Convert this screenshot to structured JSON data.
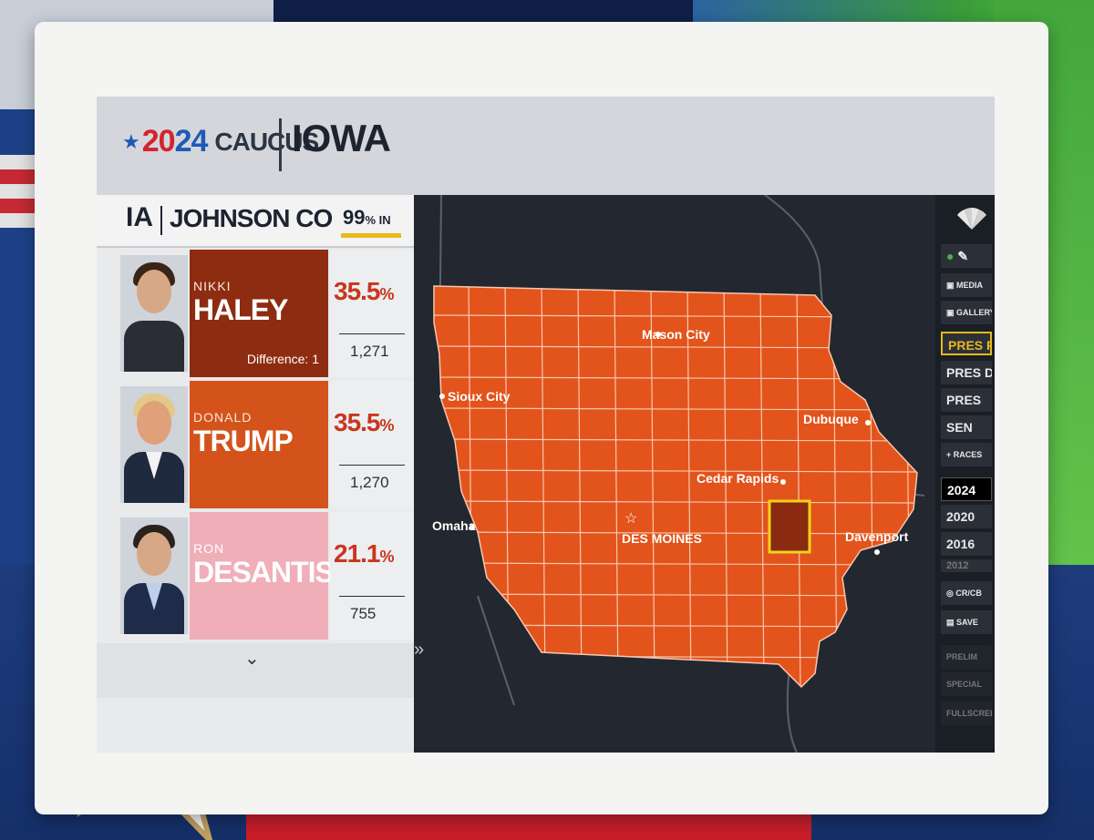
{
  "header": {
    "year_prefix": "20",
    "year_suffix": "24",
    "event": "CAUCUS",
    "state": "IOWA"
  },
  "county": {
    "state_abbr": "IA",
    "name": "JOHNSON CO",
    "reporting_value": "99",
    "reporting_suffix": "% IN"
  },
  "candidates": [
    {
      "first": "NIKKI",
      "last": "HALEY",
      "pct": "35.5",
      "votes": "1,271",
      "note": "Difference: 1",
      "color": "#8e2c11"
    },
    {
      "first": "DONALD",
      "last": "TRUMP",
      "pct": "35.5",
      "votes": "1,270",
      "color": "#d4531a"
    },
    {
      "first": "RON",
      "last": "DESANTIS",
      "pct": "21.1",
      "votes": "755",
      "color": "#f0aeb9"
    }
  ],
  "pct_suffix": "%",
  "map": {
    "fill_color": "#e2541b",
    "highlight_color": "#8a2a10",
    "highlight_outline": "#f3d21a",
    "cities": [
      {
        "name": "Mason City"
      },
      {
        "name": "Sioux City"
      },
      {
        "name": "Dubuque"
      },
      {
        "name": "Cedar Rapids"
      },
      {
        "name": "DES MOINES"
      },
      {
        "name": "Omaha"
      },
      {
        "name": "Davenport"
      }
    ]
  },
  "toolbar": {
    "media": "MEDIA",
    "gallery": "GALLERY",
    "pres_r": "PRES R",
    "pres_d": "PRES D",
    "pres": "PRES",
    "sen": "SEN",
    "races": "+ RACES",
    "years": [
      "2024",
      "2020",
      "2016",
      "2012"
    ],
    "cr_cb": "CR/CB",
    "save": "SAVE",
    "prelim": "PRELIM",
    "special": "SPECIAL",
    "fullscreen": "FULLSCREEN"
  },
  "icons": {
    "collapse": "double-chevron-right-icon",
    "expand": "chevron-down-icon",
    "capital": "star-icon"
  }
}
